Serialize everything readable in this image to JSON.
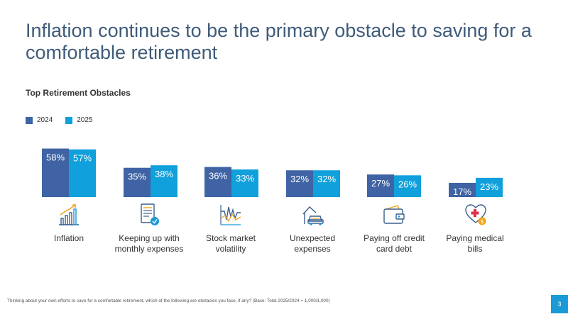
{
  "header": {
    "title": "Inflation continues to be the primary obstacle to saving for a comfortable retirement"
  },
  "colors": {
    "series_2024": "#3f63a4",
    "series_2025": "#10a0dc",
    "title": "#3f5b7a",
    "accent": "#1a9ad6"
  },
  "chart_data": {
    "type": "bar",
    "title": "Top Retirement Obstacles",
    "categories": [
      "Inflation",
      "Keeping up with monthly expenses",
      "Stock market volatility",
      "Unexpected expenses",
      "Paying off credit card debt",
      "Paying medical bills"
    ],
    "category_lines": [
      [
        "Inflation"
      ],
      [
        "Keeping up with",
        "monthly expenses"
      ],
      [
        "Stock market",
        "volatility"
      ],
      [
        "Unexpected",
        "expenses"
      ],
      [
        "Paying off credit",
        "card debt"
      ],
      [
        "Paying medical",
        "bills"
      ]
    ],
    "icons": [
      "bar-chart-growth-icon",
      "bill-checkmark-icon",
      "stock-line-icon",
      "car-house-icon",
      "wallet-icon",
      "medical-heart-dollar-icon"
    ],
    "series": [
      {
        "name": "2024",
        "values": [
          58,
          35,
          36,
          32,
          27,
          17
        ],
        "labels": [
          "58%",
          "35%",
          "36%",
          "32%",
          "27%",
          "17%"
        ]
      },
      {
        "name": "2025",
        "values": [
          57,
          38,
          33,
          32,
          26,
          23
        ],
        "labels": [
          "57%",
          "38%",
          "33%",
          "32%",
          "26%",
          "23%"
        ]
      }
    ],
    "grid": false,
    "legend_position": "top-left"
  },
  "footnote": "Thinking about your own efforts to save for a comfortable retirement, which of the following are obstacles you face, if any? (Base: Total 2025/2024 = 1,000/1,000)",
  "page_number": "3"
}
